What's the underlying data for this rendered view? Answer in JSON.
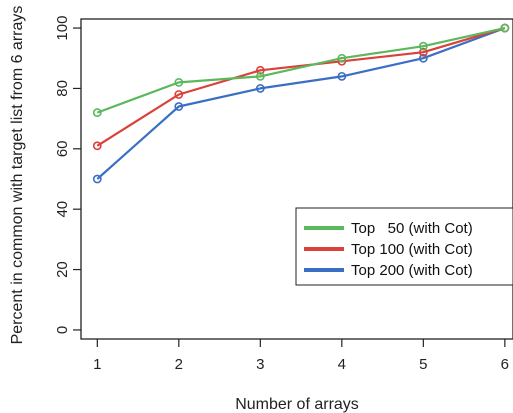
{
  "chart_data": {
    "type": "line",
    "xlabel": "Number of arrays",
    "ylabel": "Percent in common with target list from 6 arrays",
    "x": [
      1,
      2,
      3,
      4,
      5,
      6
    ],
    "xlim": [
      0.8,
      6.1
    ],
    "ylim": [
      -3,
      103
    ],
    "xticks": [
      "1",
      "2",
      "3",
      "4",
      "5",
      "6"
    ],
    "yticks": [
      "0",
      "20",
      "40",
      "60",
      "80",
      "100"
    ],
    "grid": false,
    "legend_position": "bottom-right",
    "series": [
      {
        "name": "Top   50 (with Cot)",
        "color": "#5cb85c",
        "values": [
          72,
          82,
          84,
          90,
          94,
          100
        ]
      },
      {
        "name": "Top 100 (with Cot)",
        "color": "#d9413a",
        "values": [
          61,
          78,
          86,
          89,
          92,
          100
        ]
      },
      {
        "name": "Top 200 (with Cot)",
        "color": "#3a6fc4",
        "values": [
          50,
          74,
          80,
          84,
          90,
          100
        ]
      }
    ]
  }
}
